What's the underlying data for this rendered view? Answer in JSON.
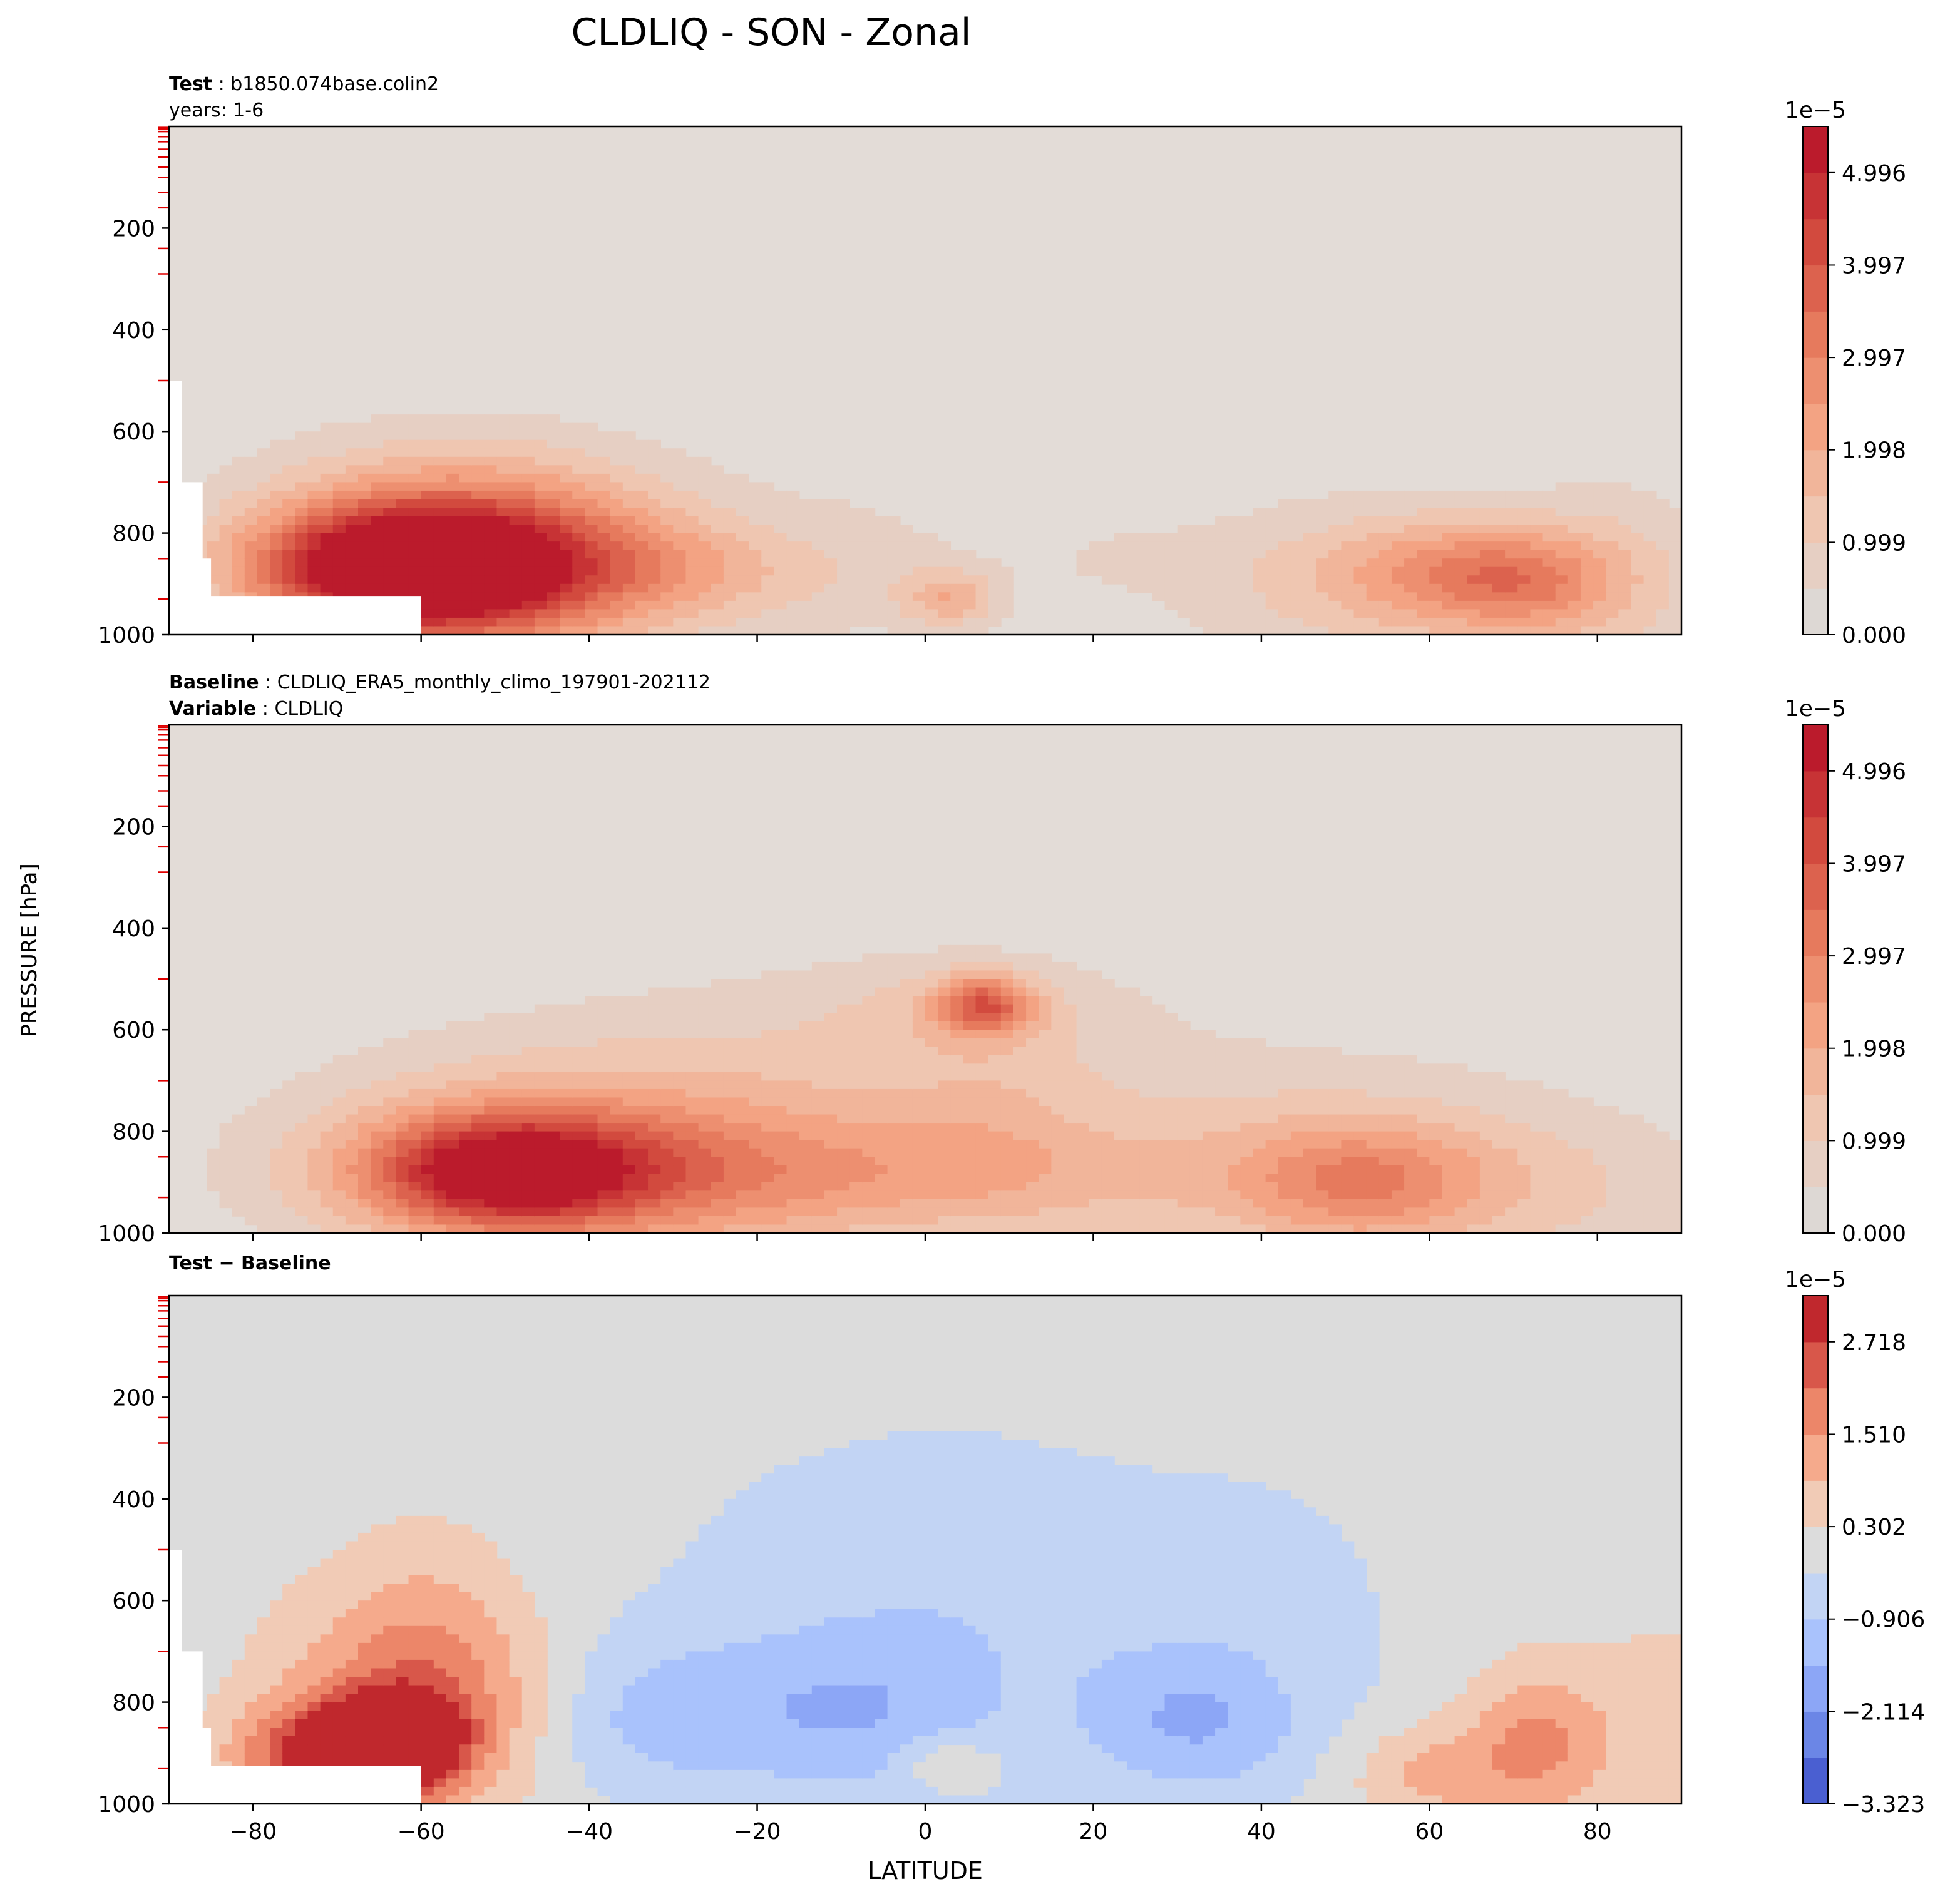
{
  "figure": {
    "title": "CLDLIQ - SON - Zonal",
    "ylabel": "PRESSURE [hPa]",
    "xlabel": "LATITUDE"
  },
  "chart_data": [
    {
      "type": "heatmap",
      "panel": "test",
      "header_lines": [
        {
          "bold": "Test",
          "text": "b1850.074base.colin2"
        },
        {
          "bold": "",
          "text": "years: 1-6"
        }
      ],
      "x_ticks": [
        -80,
        -60,
        -40,
        -20,
        0,
        20,
        40,
        60,
        80
      ],
      "y_ticks": [
        200,
        400,
        600,
        800,
        1000
      ],
      "xlim": [
        -90,
        90
      ],
      "ylim": [
        1000,
        0
      ],
      "colorbar": {
        "multiplier": "1e−5",
        "ticks": [
          "0.000",
          "0.999",
          "1.998",
          "2.997",
          "3.997",
          "4.996"
        ],
        "range": [
          0,
          5.5
        ],
        "levels": 11,
        "scheme": "sequential-red"
      },
      "masked_region": "white surface mask south of −60 near 900–1000 hPa",
      "background": "#e3dcd7"
    },
    {
      "type": "heatmap",
      "panel": "baseline",
      "header_lines": [
        {
          "bold": "Baseline",
          "text": "CLDLIQ_ERA5_monthly_climo_197901-202112"
        },
        {
          "bold": "Variable",
          "text": "CLDLIQ"
        }
      ],
      "x_ticks": [
        -80,
        -60,
        -40,
        -20,
        0,
        20,
        40,
        60,
        80
      ],
      "y_ticks": [
        200,
        400,
        600,
        800,
        1000
      ],
      "xlim": [
        -90,
        90
      ],
      "ylim": [
        1000,
        0
      ],
      "colorbar": {
        "multiplier": "1e−5",
        "ticks": [
          "0.000",
          "0.999",
          "1.998",
          "2.997",
          "3.997",
          "4.996"
        ],
        "range": [
          0,
          5.5
        ],
        "levels": 11,
        "scheme": "sequential-red"
      },
      "background": "#e3dcd7"
    },
    {
      "type": "heatmap",
      "panel": "difference",
      "header_lines": [
        {
          "bold": "Test − Baseline",
          "text": ""
        }
      ],
      "x_ticks": [
        -80,
        -60,
        -40,
        -20,
        0,
        20,
        40,
        60,
        80
      ],
      "y_ticks": [
        200,
        400,
        600,
        800,
        1000
      ],
      "xlim": [
        -90,
        90
      ],
      "ylim": [
        1000,
        0
      ],
      "colorbar": {
        "multiplier": "1e−5",
        "ticks": [
          "−3.323",
          "−2.114",
          "−0.906",
          "0.302",
          "1.510",
          "2.718"
        ],
        "range": [
          -3.323,
          3.323
        ],
        "levels": 11,
        "scheme": "diverging-blue-red"
      },
      "masked_region": "white surface mask south of −60 near 900–1000 hPa",
      "background": "#dcdcdc"
    }
  ]
}
